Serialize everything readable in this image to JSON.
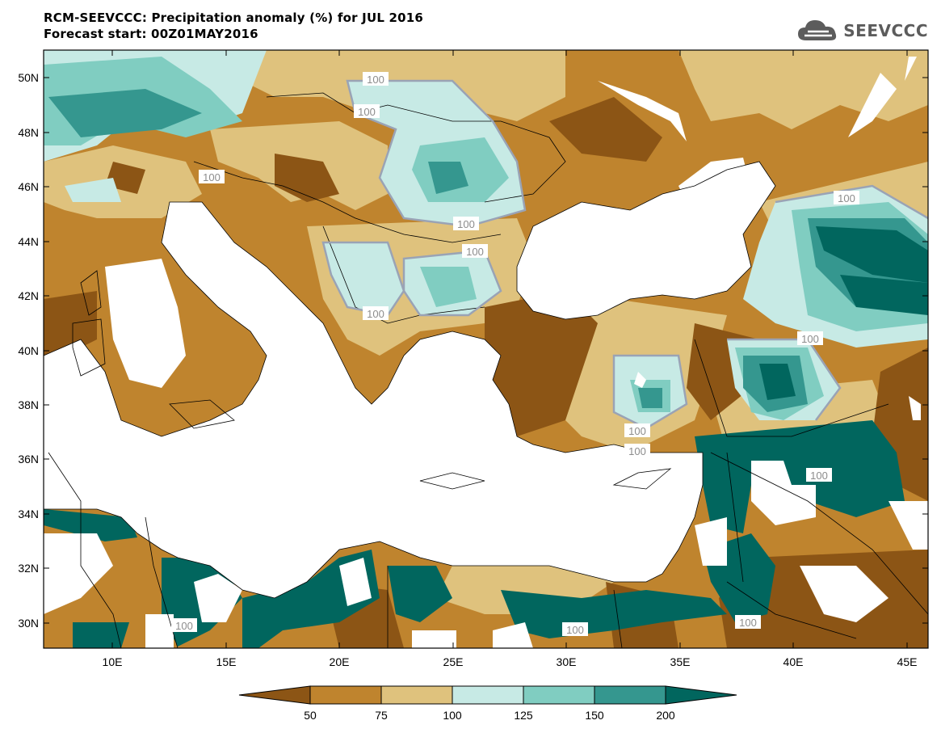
{
  "header": {
    "title_line1": "RCM-SEEVCCC: Precipitation anomaly (%) for JUL 2016",
    "title_line2": "Forecast start: 00Z01MAY2016",
    "logo_text": "SEEVCCC",
    "logo_icon": "cloud-icon"
  },
  "map": {
    "lat_ticks": [
      "50N",
      "48N",
      "46N",
      "44N",
      "42N",
      "40N",
      "38N",
      "36N",
      "34N",
      "32N",
      "30N"
    ],
    "lon_ticks": [
      "10E",
      "15E",
      "20E",
      "25E",
      "30E",
      "35E",
      "40E",
      "45E"
    ],
    "contour_labels": [
      "100",
      "100",
      "100",
      "100",
      "100",
      "100",
      "100",
      "100",
      "100",
      "100",
      "100",
      "100",
      "100",
      "100",
      "100"
    ]
  },
  "colorbar": {
    "levels": [
      "50",
      "75",
      "100",
      "125",
      "150",
      "200"
    ],
    "colors": [
      "#8c5515",
      "#bf842e",
      "#dfc27d",
      "#c7eae5",
      "#80cdc1",
      "#35978f",
      "#01665e"
    ]
  },
  "colors": {
    "very_dry": "#8c5515",
    "dry": "#bf842e",
    "slightly_dry": "#dfc27d",
    "slightly_wet": "#c7eae5",
    "wet": "#80cdc1",
    "very_wet": "#35978f",
    "extreme_wet": "#01665e",
    "sea": "#ffffff"
  }
}
